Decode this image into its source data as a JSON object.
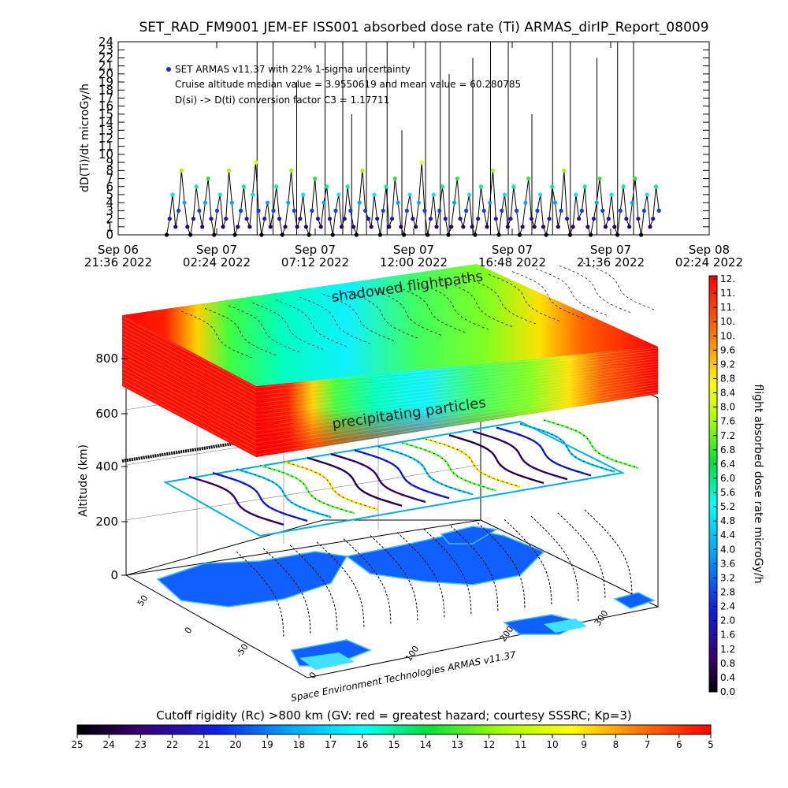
{
  "title": "SET_RAD_FM9001  JEM-EF ISS001 absorbed dose rate (Ti) ARMAS_dirIP_Report_08009",
  "chart_data": [
    {
      "type": "scatter",
      "ylabel": "dD(Ti)/dt microGy/h",
      "ylim": [
        0,
        24
      ],
      "yticks": [
        0,
        1,
        2,
        3,
        4,
        5,
        6,
        7,
        8,
        9,
        10,
        11,
        12,
        13,
        14,
        15,
        16,
        17,
        18,
        19,
        20,
        21,
        22,
        23,
        24
      ],
      "xticks": [
        {
          "l1": "Sep 06",
          "l2": "21:36 2022"
        },
        {
          "l1": "Sep 07",
          "l2": "02:24 2022"
        },
        {
          "l1": "Sep 07",
          "l2": "07:12 2022"
        },
        {
          "l1": "Sep 07",
          "l2": "12:00 2022"
        },
        {
          "l1": "Sep 07",
          "l2": "16:48 2022"
        },
        {
          "l1": "Sep 07",
          "l2": "21:36 2022"
        },
        {
          "l1": "Sep 08",
          "l2": "02:24 2022"
        }
      ],
      "legend": [
        "SET ARMAS v11.37 with 22% 1-sigma uncertainty",
        "Cruise altitude median value = 3.9550619 and mean value = 60.280785",
        "D(si) -> D(ti) conversion factor C3 = 1.17711"
      ],
      "legend_marker_color": "#1a2bd0",
      "series": [
        {
          "values": [
            0,
            2,
            5,
            1,
            3,
            8,
            4,
            1,
            0,
            2,
            6,
            3,
            1,
            4,
            7,
            2,
            0,
            3,
            5,
            1,
            2,
            8,
            4,
            0,
            1,
            3,
            6,
            2,
            1,
            5,
            9,
            3,
            0,
            2,
            4,
            1,
            3,
            6,
            2,
            0,
            1,
            4,
            8,
            3,
            1,
            2,
            5,
            1,
            0,
            3,
            7,
            2,
            1,
            4,
            6,
            2,
            0,
            3,
            5,
            1,
            2,
            6,
            3,
            1,
            0,
            4,
            8,
            3,
            2,
            1,
            5,
            2,
            0,
            3,
            6,
            1,
            2,
            7,
            4,
            1,
            0,
            3,
            5,
            2,
            1,
            4,
            9,
            3,
            0,
            2,
            5,
            1,
            3,
            6,
            2,
            0,
            1,
            4,
            7,
            2,
            1,
            3,
            5,
            1,
            0,
            2,
            6,
            3,
            1,
            4,
            8,
            2,
            0,
            3,
            5,
            1,
            2,
            6,
            3,
            0,
            1,
            4,
            7,
            2,
            1,
            3,
            5,
            1,
            0,
            2,
            6,
            4,
            1,
            3,
            8,
            2,
            0,
            1,
            5,
            2,
            3,
            6,
            1,
            0,
            2,
            4,
            7,
            3,
            1,
            2,
            5,
            1,
            0,
            3,
            6,
            2,
            1,
            4,
            7,
            2,
            0,
            3,
            5,
            1,
            2,
            6,
            3
          ]
        }
      ],
      "spikes": [
        {
          "t": 0.235,
          "v": 24
        },
        {
          "t": 0.262,
          "v": 24
        },
        {
          "t": 0.302,
          "v": 19
        },
        {
          "t": 0.35,
          "v": 24
        },
        {
          "t": 0.38,
          "v": 24
        },
        {
          "t": 0.395,
          "v": 15
        },
        {
          "t": 0.42,
          "v": 24
        },
        {
          "t": 0.455,
          "v": 24
        },
        {
          "t": 0.48,
          "v": 13
        },
        {
          "t": 0.52,
          "v": 24
        },
        {
          "t": 0.545,
          "v": 24
        },
        {
          "t": 0.56,
          "v": 20
        },
        {
          "t": 0.6,
          "v": 22
        },
        {
          "t": 0.63,
          "v": 24
        },
        {
          "t": 0.66,
          "v": 24
        },
        {
          "t": 0.7,
          "v": 15
        },
        {
          "t": 0.735,
          "v": 24
        },
        {
          "t": 0.765,
          "v": 24
        },
        {
          "t": 0.81,
          "v": 22
        },
        {
          "t": 0.845,
          "v": 24
        },
        {
          "t": 0.872,
          "v": 24
        }
      ]
    },
    {
      "type": "heatmap",
      "ylabel": "Altitude (km)",
      "z_ticks": [
        "800",
        "600",
        "400",
        "200",
        "0"
      ],
      "annotations": [
        "shadowed flightpaths",
        "precipitating particles"
      ],
      "footer": "Space Environment Technologies ARMAS v11.37",
      "lat_ticks": [
        "50",
        "0",
        "-50"
      ],
      "lon_ticks": [
        "0",
        "100",
        "200",
        "300"
      ]
    },
    {
      "type": "colorbar",
      "ylabel": "flight absorbed dose rate microGy/h",
      "ticks": [
        "12.",
        "11.",
        "11.",
        "10.",
        "10.",
        "9.6",
        "9.2",
        "8.8",
        "8.4",
        "8.0",
        "7.6",
        "7.2",
        "6.8",
        "6.4",
        "6.0",
        "5.6",
        "5.2",
        "4.8",
        "4.4",
        "4.0",
        "3.6",
        "3.2",
        "2.8",
        "2.4",
        "2.0",
        "1.6",
        "1.2",
        "0.8",
        "0.4",
        "0.0"
      ]
    },
    {
      "type": "colorbar",
      "title": "Cutoff rigidity (Rc) >800 km (GV: red = greatest hazard; courtesy SSSRC; Kp=3)",
      "ticks": [
        "25",
        "24",
        "23",
        "22",
        "21",
        "20",
        "19",
        "18",
        "17",
        "16",
        "15",
        "14",
        "13",
        "12",
        "11",
        "10",
        "9",
        "8",
        "7",
        "6",
        "5"
      ]
    }
  ]
}
